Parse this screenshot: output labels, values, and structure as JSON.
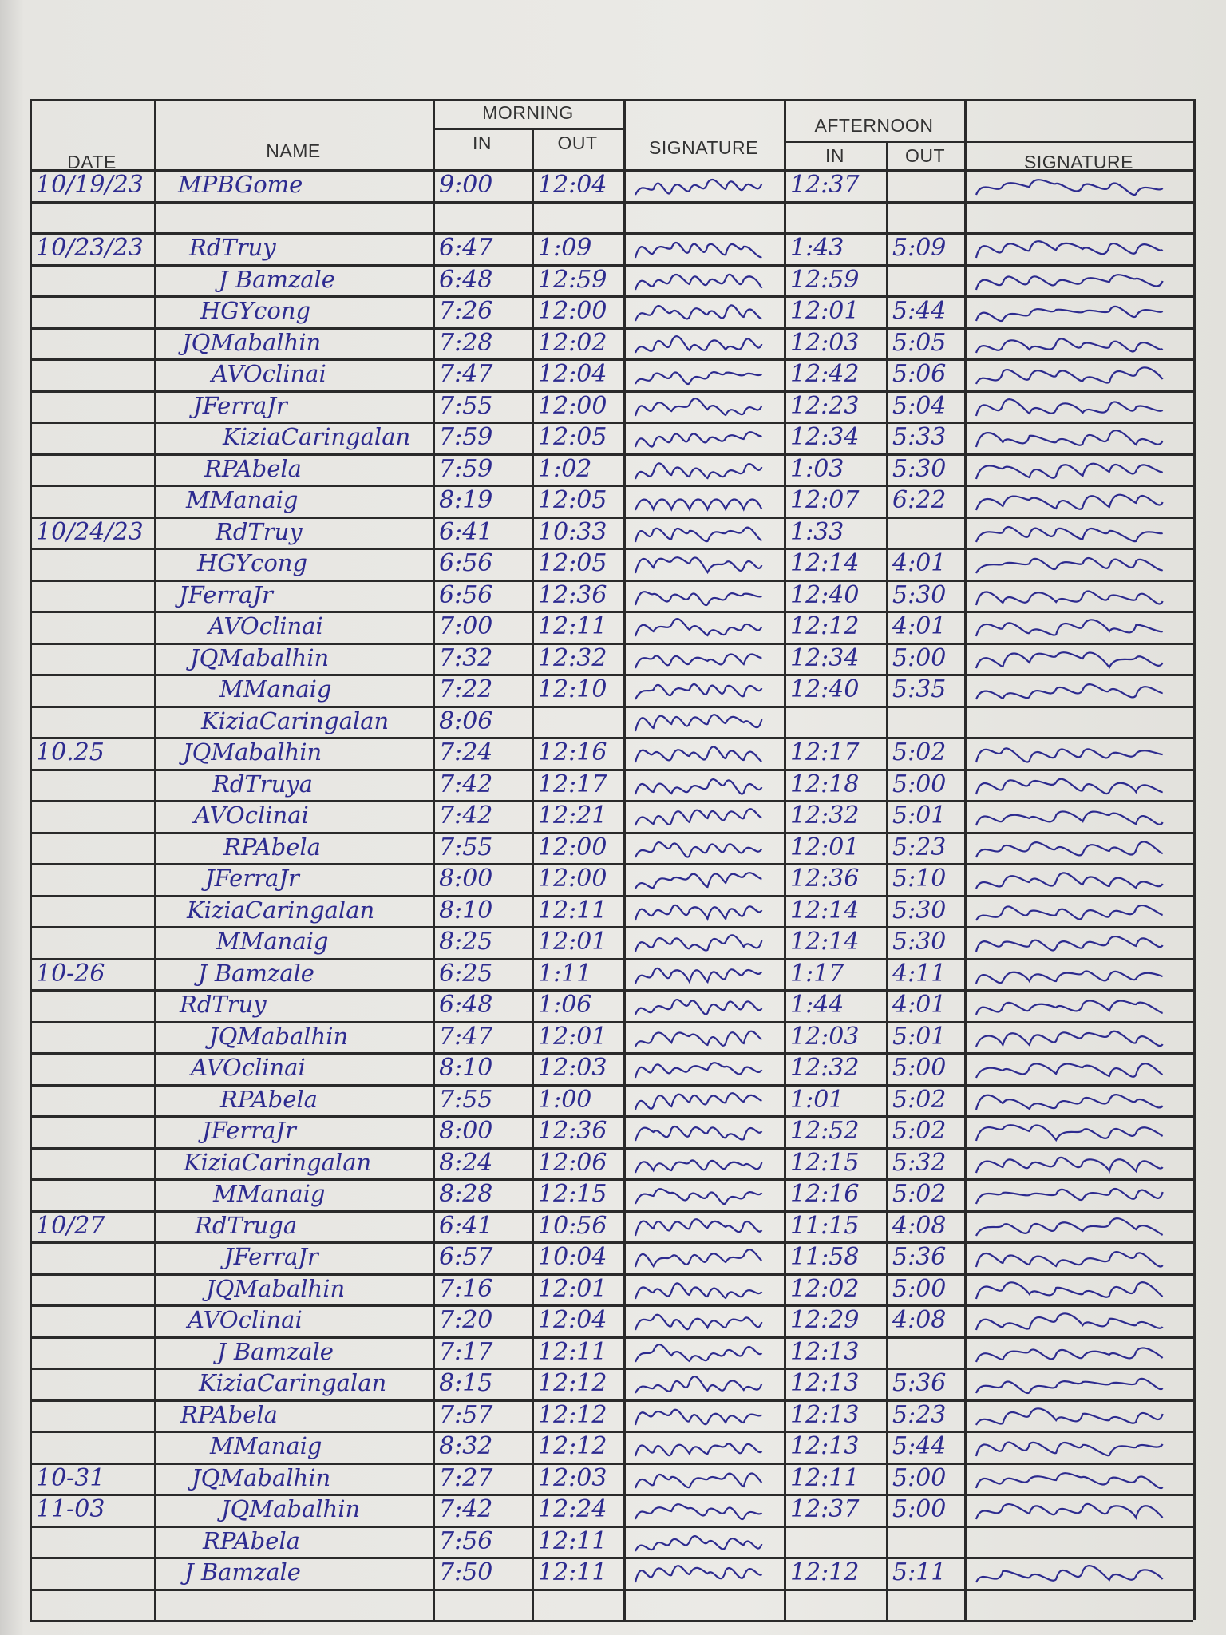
{
  "header": {
    "date": "DATE",
    "name": "NAME",
    "morning": "MORNING",
    "afternoon": "AFTERNOON",
    "in": "IN",
    "out": "OUT",
    "signature": "SIGNATURE"
  },
  "colors": {
    "ink": "#2d2b8f",
    "rule": "#2a2a2a",
    "paper": "#ebeae6"
  },
  "rows": [
    {
      "date": "10/19/23",
      "name": "MPBGome",
      "m_in": "9:00",
      "m_out": "12:04",
      "a_in": "12:37",
      "a_out": ""
    },
    {
      "date": "",
      "name": "",
      "m_in": "",
      "m_out": "",
      "a_in": "",
      "a_out": ""
    },
    {
      "date": "10/23/23",
      "name": "RdTruy",
      "m_in": "6:47",
      "m_out": "1:09",
      "a_in": "1:43",
      "a_out": "5:09"
    },
    {
      "date": "",
      "name": "J Bamzale",
      "m_in": "6:48",
      "m_out": "12:59",
      "a_in": "12:59",
      "a_out": ""
    },
    {
      "date": "",
      "name": "HGYcong",
      "m_in": "7:26",
      "m_out": "12:00",
      "a_in": "12:01",
      "a_out": "5:44"
    },
    {
      "date": "",
      "name": "JQMabalhin",
      "m_in": "7:28",
      "m_out": "12:02",
      "a_in": "12:03",
      "a_out": "5:05"
    },
    {
      "date": "",
      "name": "AVOclinai",
      "m_in": "7:47",
      "m_out": "12:04",
      "a_in": "12:42",
      "a_out": "5:06"
    },
    {
      "date": "",
      "name": "JFerraJr",
      "m_in": "7:55",
      "m_out": "12:00",
      "a_in": "12:23",
      "a_out": "5:04"
    },
    {
      "date": "",
      "name": "KiziaCaringalan",
      "m_in": "7:59",
      "m_out": "12:05",
      "a_in": "12:34",
      "a_out": "5:33"
    },
    {
      "date": "",
      "name": "RPAbela",
      "m_in": "7:59",
      "m_out": "1:02",
      "a_in": "1:03",
      "a_out": "5:30"
    },
    {
      "date": "",
      "name": "MManaig",
      "m_in": "8:19",
      "m_out": "12:05",
      "a_in": "12:07",
      "a_out": "6:22"
    },
    {
      "date": "10/24/23",
      "name": "RdTruy",
      "m_in": "6:41",
      "m_out": "10:33",
      "a_in": "1:33",
      "a_out": ""
    },
    {
      "date": "",
      "name": "HGYcong",
      "m_in": "6:56",
      "m_out": "12:05",
      "a_in": "12:14",
      "a_out": "4:01"
    },
    {
      "date": "",
      "name": "JFerraJr",
      "m_in": "6:56",
      "m_out": "12:36",
      "a_in": "12:40",
      "a_out": "5:30"
    },
    {
      "date": "",
      "name": "AVOclinai",
      "m_in": "7:00",
      "m_out": "12:11",
      "a_in": "12:12",
      "a_out": "4:01"
    },
    {
      "date": "",
      "name": "JQMabalhin",
      "m_in": "7:32",
      "m_out": "12:32",
      "a_in": "12:34",
      "a_out": "5:00"
    },
    {
      "date": "",
      "name": "MManaig",
      "m_in": "7:22",
      "m_out": "12:10",
      "a_in": "12:40",
      "a_out": "5:35"
    },
    {
      "date": "",
      "name": "KiziaCaringalan",
      "m_in": "8:06",
      "m_out": "",
      "a_in": "",
      "a_out": ""
    },
    {
      "date": "10.25",
      "name": "JQMabalhin",
      "m_in": "7:24",
      "m_out": "12:16",
      "a_in": "12:17",
      "a_out": "5:02"
    },
    {
      "date": "",
      "name": "RdTruya",
      "m_in": "7:42",
      "m_out": "12:17",
      "a_in": "12:18",
      "a_out": "5:00"
    },
    {
      "date": "",
      "name": "AVOclinai",
      "m_in": "7:42",
      "m_out": "12:21",
      "a_in": "12:32",
      "a_out": "5:01"
    },
    {
      "date": "",
      "name": "RPAbela",
      "m_in": "7:55",
      "m_out": "12:00",
      "a_in": "12:01",
      "a_out": "5:23"
    },
    {
      "date": "",
      "name": "JFerraJr",
      "m_in": "8:00",
      "m_out": "12:00",
      "a_in": "12:36",
      "a_out": "5:10"
    },
    {
      "date": "",
      "name": "KiziaCaringalan",
      "m_in": "8:10",
      "m_out": "12:11",
      "a_in": "12:14",
      "a_out": "5:30"
    },
    {
      "date": "",
      "name": "MManaig",
      "m_in": "8:25",
      "m_out": "12:01",
      "a_in": "12:14",
      "a_out": "5:30"
    },
    {
      "date": "10-26",
      "name": "J Bamzale",
      "m_in": "6:25",
      "m_out": "1:11",
      "a_in": "1:17",
      "a_out": "4:11"
    },
    {
      "date": "",
      "name": "RdTruy",
      "m_in": "6:48",
      "m_out": "1:06",
      "a_in": "1:44",
      "a_out": "4:01"
    },
    {
      "date": "",
      "name": "JQMabalhin",
      "m_in": "7:47",
      "m_out": "12:01",
      "a_in": "12:03",
      "a_out": "5:01"
    },
    {
      "date": "",
      "name": "AVOclinai",
      "m_in": "8:10",
      "m_out": "12:03",
      "a_in": "12:32",
      "a_out": "5:00"
    },
    {
      "date": "",
      "name": "RPAbela",
      "m_in": "7:55",
      "m_out": "1:00",
      "a_in": "1:01",
      "a_out": "5:02"
    },
    {
      "date": "",
      "name": "JFerraJr",
      "m_in": "8:00",
      "m_out": "12:36",
      "a_in": "12:52",
      "a_out": "5:02"
    },
    {
      "date": "",
      "name": "KiziaCaringalan",
      "m_in": "8:24",
      "m_out": "12:06",
      "a_in": "12:15",
      "a_out": "5:32"
    },
    {
      "date": "",
      "name": "MManaig",
      "m_in": "8:28",
      "m_out": "12:15",
      "a_in": "12:16",
      "a_out": "5:02"
    },
    {
      "date": "10/27",
      "name": "RdTruga",
      "m_in": "6:41",
      "m_out": "10:56",
      "a_in": "11:15",
      "a_out": "4:08"
    },
    {
      "date": "",
      "name": "JFerraJr",
      "m_in": "6:57",
      "m_out": "10:04",
      "a_in": "11:58",
      "a_out": "5:36"
    },
    {
      "date": "",
      "name": "JQMabalhin",
      "m_in": "7:16",
      "m_out": "12:01",
      "a_in": "12:02",
      "a_out": "5:00"
    },
    {
      "date": "",
      "name": "AVOclinai",
      "m_in": "7:20",
      "m_out": "12:04",
      "a_in": "12:29",
      "a_out": "4:08"
    },
    {
      "date": "",
      "name": "J Bamzale",
      "m_in": "7:17",
      "m_out": "12:11",
      "a_in": "12:13",
      "a_out": ""
    },
    {
      "date": "",
      "name": "KiziaCaringalan",
      "m_in": "8:15",
      "m_out": "12:12",
      "a_in": "12:13",
      "a_out": "5:36"
    },
    {
      "date": "",
      "name": "RPAbela",
      "m_in": "7:57",
      "m_out": "12:12",
      "a_in": "12:13",
      "a_out": "5:23"
    },
    {
      "date": "",
      "name": "MManaig",
      "m_in": "8:32",
      "m_out": "12:12",
      "a_in": "12:13",
      "a_out": "5:44"
    },
    {
      "date": "10-31",
      "name": "JQMabalhin",
      "m_in": "7:27",
      "m_out": "12:03",
      "a_in": "12:11",
      "a_out": "5:00"
    },
    {
      "date": "11-03",
      "name": "JQMabalhin",
      "m_in": "7:42",
      "m_out": "12:24",
      "a_in": "12:37",
      "a_out": "5:00"
    },
    {
      "date": "",
      "name": "RPAbela",
      "m_in": "7:56",
      "m_out": "12:11",
      "a_in": "",
      "a_out": ""
    },
    {
      "date": "",
      "name": "J Bamzale",
      "m_in": "7:50",
      "m_out": "12:11",
      "a_in": "12:12",
      "a_out": "5:11"
    }
  ]
}
